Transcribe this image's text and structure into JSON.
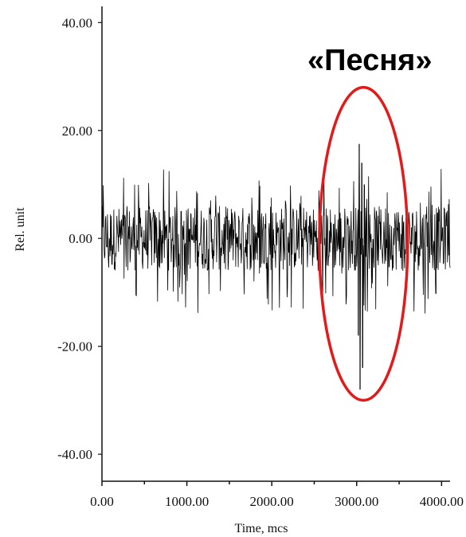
{
  "chart_data": {
    "type": "line",
    "title": "",
    "xlabel": "Time, mcs",
    "ylabel": "Rel. unit",
    "xlim": [
      0,
      4100
    ],
    "ylim": [
      -45,
      43
    ],
    "x_ticks": [
      0,
      1000,
      2000,
      3000,
      4000
    ],
    "x_tick_labels": [
      "0.00",
      "1000.00",
      "2000.00",
      "3000.00",
      "4000.00"
    ],
    "y_ticks": [
      40,
      20,
      0,
      -20,
      -40
    ],
    "y_tick_labels": [
      "40.00",
      "20.00",
      "0.00",
      "-20.00",
      "-40.00"
    ],
    "grid": false,
    "annotation": {
      "text": "«Песня»",
      "ellipse_center": [
        3080,
        -1
      ],
      "ellipse_semi_axes": [
        520,
        29
      ],
      "color": "#e31a1a"
    },
    "series": [
      {
        "color": "#000000",
        "noise_band": [
          -6,
          6
        ],
        "noise_range": [
          -14,
          13
        ],
        "x_range": [
          0,
          4100
        ],
        "spikes": [
          {
            "x": 3030,
            "y": 17.5
          },
          {
            "x": 3040,
            "y": -28
          },
          {
            "x": 3060,
            "y": 14
          },
          {
            "x": 3070,
            "y": -24
          },
          {
            "x": 3090,
            "y": 10
          },
          {
            "x": 3020,
            "y": -18
          }
        ]
      }
    ]
  }
}
